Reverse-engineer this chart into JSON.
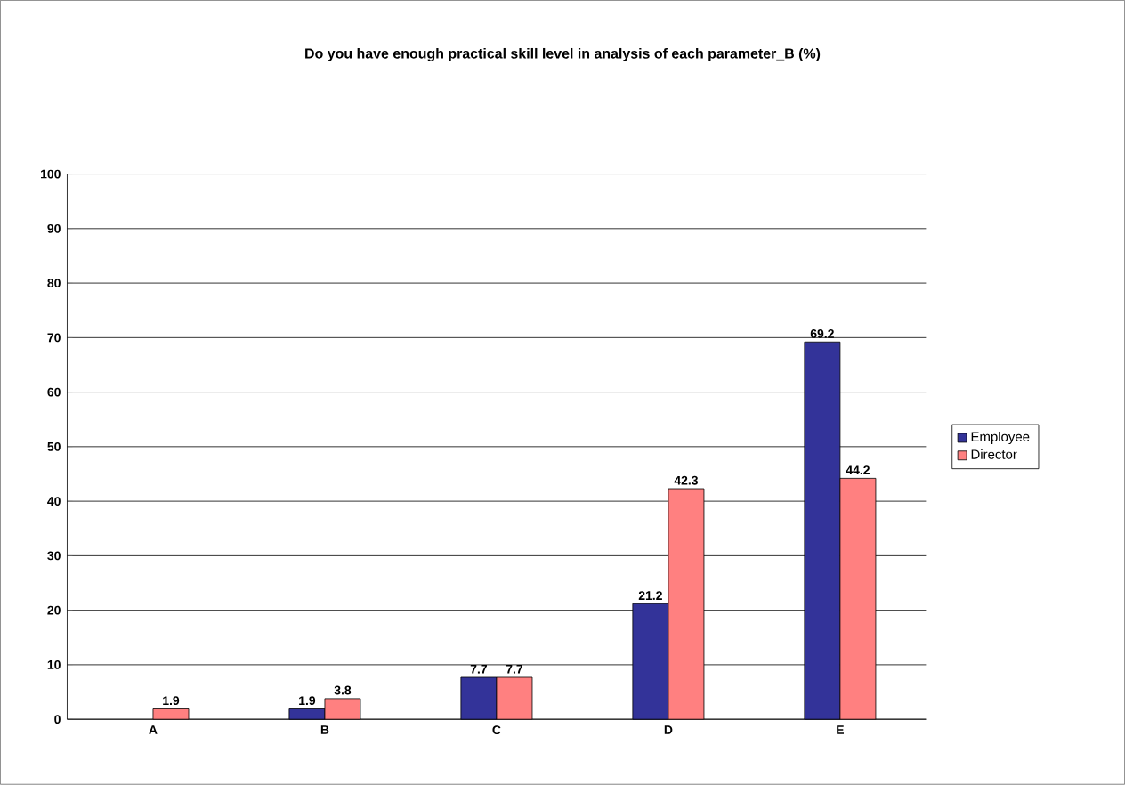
{
  "chart_data": {
    "type": "bar",
    "title": "Do you have enough practical skill level in analysis of each parameter_B  (%)",
    "categories": [
      "A",
      "B",
      "C",
      "D",
      "E"
    ],
    "series": [
      {
        "name": "Employee",
        "color": "#333399",
        "values": [
          null,
          1.9,
          7.7,
          21.2,
          69.2
        ],
        "value_labels": [
          null,
          "1.9",
          "7.7",
          "21.2",
          "69.2"
        ]
      },
      {
        "name": "Director",
        "color": "#ff8080",
        "values": [
          1.9,
          3.8,
          7.7,
          42.3,
          44.2
        ],
        "value_labels": [
          "1.9",
          "3.8",
          "7.7",
          "42.3",
          "44.2"
        ]
      }
    ],
    "ylim": [
      0,
      100
    ],
    "yticks": [
      0,
      10,
      20,
      30,
      40,
      50,
      60,
      70,
      80,
      90,
      100
    ],
    "grid": "y",
    "legend": "right"
  }
}
